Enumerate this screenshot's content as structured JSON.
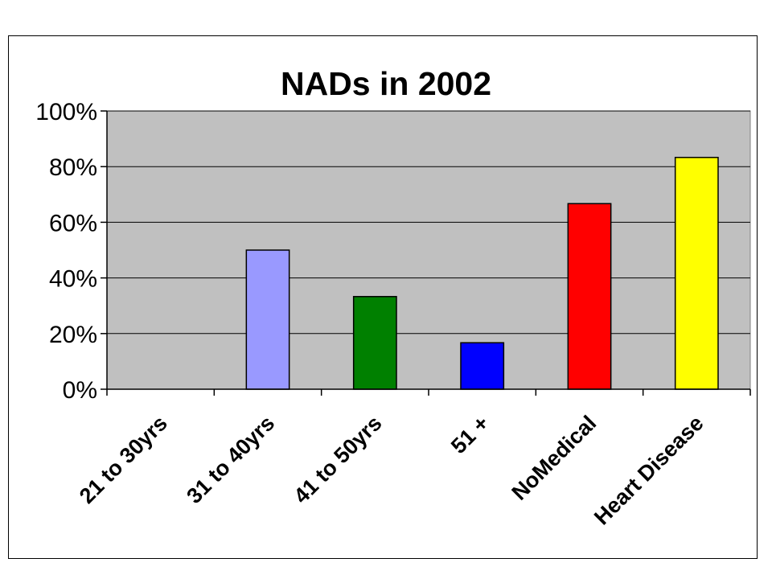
{
  "chart_data": {
    "type": "bar",
    "title": "NADs in 2002",
    "xlabel": "",
    "ylabel": "",
    "categories": [
      "21 to 30yrs",
      "31 to 40yrs",
      "41 to 50yrs",
      "51 +",
      "NoMedical",
      "Heart Disease"
    ],
    "values": [
      0,
      0.5,
      0.333,
      0.167,
      0.667,
      0.833
    ],
    "colors": [
      "#9999ff",
      "#9999ff",
      "#008000",
      "#0000ff",
      "#ff0000",
      "#ffff00"
    ],
    "ylim": [
      0,
      1
    ],
    "yticks": [
      0,
      0.2,
      0.4,
      0.6,
      0.8,
      1.0
    ],
    "ytick_labels": [
      "0%",
      "20%",
      "40%",
      "60%",
      "80%",
      "100%"
    ],
    "plot_background": "#c0c0c0",
    "grid": true,
    "legend": "none"
  }
}
